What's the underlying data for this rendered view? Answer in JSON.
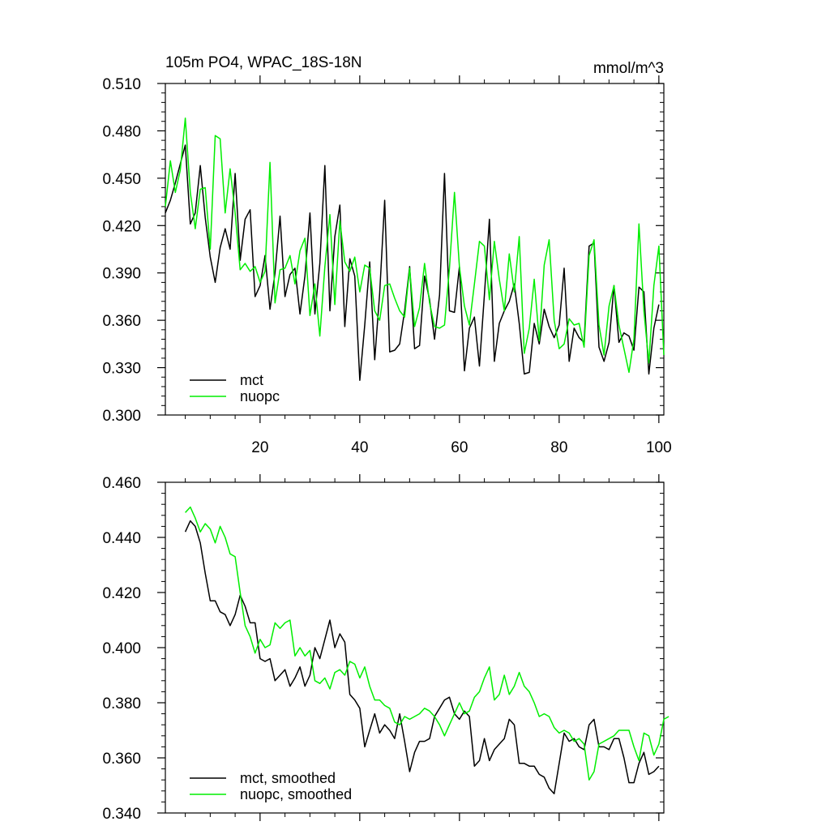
{
  "chart_data": [
    {
      "type": "line",
      "title": "105m PO4, WPAC_18S-18N",
      "units": "mmol/m^3",
      "xlim": [
        1,
        101
      ],
      "ylim": [
        0.3,
        0.51
      ],
      "x_ticks": [
        20,
        40,
        60,
        80,
        100
      ],
      "y_ticks": [
        0.3,
        0.33,
        0.36,
        0.39,
        0.42,
        0.45,
        0.48,
        0.51
      ],
      "y_tick_labels": [
        "0.300",
        "0.330",
        "0.360",
        "0.390",
        "0.420",
        "0.450",
        "0.480",
        "0.510"
      ],
      "x_tick_labels": [
        "20",
        "40",
        "60",
        "80",
        "100"
      ],
      "legend": [
        "mct",
        "nuopc"
      ],
      "legend_position": "bottom-left",
      "series": [
        {
          "name": "mct",
          "color": "#000000",
          "x_start": 1,
          "values": [
            0.428,
            0.436,
            0.447,
            0.459,
            0.471,
            0.421,
            0.428,
            0.458,
            0.425,
            0.4,
            0.384,
            0.406,
            0.418,
            0.405,
            0.453,
            0.398,
            0.424,
            0.43,
            0.375,
            0.382,
            0.401,
            0.367,
            0.39,
            0.426,
            0.375,
            0.389,
            0.393,
            0.364,
            0.388,
            0.428,
            0.364,
            0.396,
            0.458,
            0.366,
            0.413,
            0.433,
            0.356,
            0.399,
            0.388,
            0.322,
            0.357,
            0.397,
            0.335,
            0.377,
            0.436,
            0.34,
            0.341,
            0.345,
            0.366,
            0.394,
            0.342,
            0.344,
            0.388,
            0.373,
            0.348,
            0.376,
            0.453,
            0.366,
            0.365,
            0.394,
            0.328,
            0.355,
            0.362,
            0.331,
            0.376,
            0.424,
            0.334,
            0.358,
            0.366,
            0.372,
            0.383,
            0.358,
            0.326,
            0.327,
            0.358,
            0.345,
            0.367,
            0.356,
            0.349,
            0.357,
            0.393,
            0.334,
            0.355,
            0.349,
            0.346,
            0.407,
            0.409,
            0.343,
            0.334,
            0.346,
            0.382,
            0.346,
            0.352,
            0.35,
            0.341,
            0.381,
            0.378,
            0.326,
            0.355,
            0.37
          ]
        },
        {
          "name": "nuopc",
          "color": "#00ee00",
          "x_start": 1,
          "values": [
            0.432,
            0.461,
            0.441,
            0.455,
            0.488,
            0.441,
            0.418,
            0.443,
            0.444,
            0.405,
            0.477,
            0.475,
            0.428,
            0.456,
            0.428,
            0.392,
            0.396,
            0.391,
            0.394,
            0.384,
            0.391,
            0.46,
            0.371,
            0.392,
            0.393,
            0.401,
            0.383,
            0.404,
            0.412,
            0.363,
            0.383,
            0.35,
            0.394,
            0.427,
            0.37,
            0.423,
            0.397,
            0.391,
            0.4,
            0.378,
            0.395,
            0.393,
            0.366,
            0.36,
            0.382,
            0.383,
            0.374,
            0.366,
            0.362,
            0.393,
            0.356,
            0.368,
            0.396,
            0.371,
            0.356,
            0.355,
            0.357,
            0.393,
            0.441,
            0.394,
            0.369,
            0.357,
            0.383,
            0.41,
            0.407,
            0.373,
            0.41,
            0.386,
            0.366,
            0.402,
            0.378,
            0.413,
            0.339,
            0.355,
            0.386,
            0.347,
            0.395,
            0.411,
            0.36,
            0.342,
            0.345,
            0.361,
            0.357,
            0.358,
            0.343,
            0.401,
            0.411,
            0.357,
            0.338,
            0.369,
            0.382,
            0.357,
            0.342,
            0.327,
            0.348,
            0.421,
            0.366,
            0.333,
            0.382,
            0.407,
            0.338
          ]
        }
      ]
    },
    {
      "type": "line",
      "xlim": [
        1,
        101
      ],
      "ylim": [
        0.34,
        0.46
      ],
      "x_ticks": [
        20,
        40,
        60,
        80,
        100
      ],
      "y_ticks": [
        0.34,
        0.36,
        0.38,
        0.4,
        0.42,
        0.44,
        0.46
      ],
      "y_tick_labels": [
        "0.340",
        "0.360",
        "0.380",
        "0.400",
        "0.420",
        "0.440",
        "0.460"
      ],
      "legend": [
        "mct, smoothed",
        "nuopc, smoothed"
      ],
      "legend_position": "bottom-left",
      "series": [
        {
          "name": "mct, smoothed",
          "color": "#000000",
          "x_start": 5,
          "values": [
            0.442,
            0.446,
            0.444,
            0.438,
            0.427,
            0.417,
            0.417,
            0.413,
            0.412,
            0.408,
            0.412,
            0.419,
            0.415,
            0.409,
            0.409,
            0.396,
            0.395,
            0.396,
            0.388,
            0.39,
            0.392,
            0.386,
            0.389,
            0.393,
            0.386,
            0.39,
            0.4,
            0.396,
            0.403,
            0.41,
            0.4,
            0.405,
            0.402,
            0.383,
            0.381,
            0.378,
            0.364,
            0.37,
            0.376,
            0.369,
            0.372,
            0.37,
            0.367,
            0.376,
            0.366,
            0.355,
            0.362,
            0.366,
            0.366,
            0.367,
            0.375,
            0.378,
            0.381,
            0.382,
            0.376,
            0.374,
            0.377,
            0.375,
            0.357,
            0.359,
            0.367,
            0.359,
            0.363,
            0.365,
            0.367,
            0.374,
            0.372,
            0.358,
            0.358,
            0.357,
            0.357,
            0.354,
            0.353,
            0.349,
            0.347,
            0.358,
            0.369,
            0.366,
            0.367,
            0.364,
            0.363,
            0.372,
            0.374,
            0.364,
            0.364,
            0.363,
            0.367,
            0.367,
            0.36,
            0.351,
            0.351,
            0.358,
            0.362,
            0.354,
            0.355,
            0.357
          ]
        },
        {
          "name": "nuopc, smoothed",
          "color": "#00ee00",
          "x_start": 5,
          "values": [
            0.449,
            0.451,
            0.447,
            0.442,
            0.445,
            0.443,
            0.438,
            0.444,
            0.44,
            0.434,
            0.433,
            0.42,
            0.408,
            0.404,
            0.398,
            0.403,
            0.4,
            0.401,
            0.409,
            0.407,
            0.409,
            0.41,
            0.397,
            0.4,
            0.397,
            0.399,
            0.388,
            0.387,
            0.389,
            0.385,
            0.391,
            0.392,
            0.39,
            0.395,
            0.394,
            0.389,
            0.393,
            0.386,
            0.381,
            0.381,
            0.379,
            0.378,
            0.373,
            0.372,
            0.375,
            0.374,
            0.375,
            0.376,
            0.378,
            0.377,
            0.375,
            0.372,
            0.368,
            0.372,
            0.376,
            0.38,
            0.376,
            0.377,
            0.382,
            0.384,
            0.389,
            0.393,
            0.381,
            0.383,
            0.39,
            0.383,
            0.386,
            0.391,
            0.386,
            0.384,
            0.38,
            0.375,
            0.376,
            0.375,
            0.371,
            0.369,
            0.37,
            0.369,
            0.366,
            0.367,
            0.365,
            0.352,
            0.355,
            0.365,
            0.366,
            0.367,
            0.368,
            0.37,
            0.37,
            0.37,
            0.364,
            0.359,
            0.369,
            0.368,
            0.361,
            0.365,
            0.374,
            0.375
          ]
        }
      ]
    }
  ]
}
